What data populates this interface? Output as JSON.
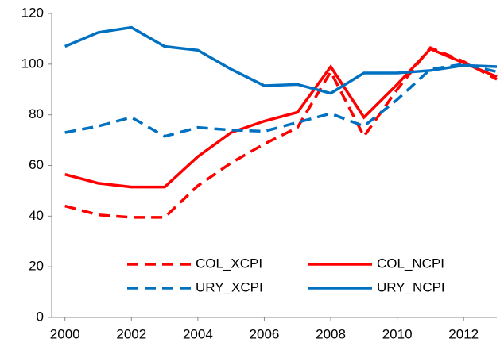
{
  "chart_data": {
    "type": "line",
    "x": [
      2000,
      2001,
      2002,
      2003,
      2004,
      2005,
      2006,
      2007,
      2008,
      2009,
      2010,
      2011,
      2012,
      2013
    ],
    "series": [
      {
        "name": "COL_XCPI",
        "color": "#ff0000",
        "dash": true,
        "values": [
          44,
          40.5,
          39.5,
          39.5,
          52,
          61,
          68.5,
          75,
          97,
          71.5,
          90,
          106.5,
          101,
          94
        ]
      },
      {
        "name": "COL_NCPI",
        "color": "#ff0000",
        "dash": false,
        "values": [
          56.5,
          53,
          51.5,
          51.5,
          63.5,
          73,
          77.5,
          81,
          99,
          79,
          92,
          106,
          100.5,
          95
        ]
      },
      {
        "name": "URY_XCPI",
        "color": "#0070c0",
        "dash": true,
        "values": [
          73,
          75.5,
          79,
          71.5,
          75,
          74,
          73.5,
          77,
          80.5,
          75.5,
          86,
          98,
          100,
          97
        ]
      },
      {
        "name": "URY_NCPI",
        "color": "#0070c0",
        "dash": false,
        "values": [
          107,
          112.5,
          114.5,
          107,
          105.5,
          98,
          91.5,
          92,
          88.5,
          96.5,
          96.5,
          97.5,
          99.5,
          99
        ]
      }
    ],
    "xlim": [
      1999.6,
      2013
    ],
    "xticks": [
      2000,
      2002,
      2004,
      2006,
      2008,
      2010,
      2012
    ],
    "ylim": [
      0,
      120
    ],
    "yticks": [
      0,
      20,
      40,
      60,
      80,
      100,
      120
    ]
  }
}
